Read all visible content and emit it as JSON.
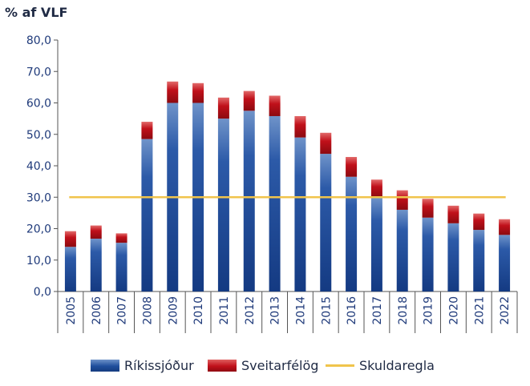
{
  "chart_data": {
    "type": "bar",
    "stacked": true,
    "unit_label": "% af VLF",
    "categories": [
      "2005",
      "2006",
      "2007",
      "2008",
      "2009",
      "2010",
      "2011",
      "2012",
      "2013",
      "2014",
      "2015",
      "2016",
      "2017",
      "2018",
      "2019",
      "2020",
      "2021",
      "2022"
    ],
    "series": [
      {
        "name": "Ríkissjóður",
        "color": "#1f4e9c",
        "values": [
          14.2,
          16.8,
          15.5,
          48.5,
          60.0,
          60.0,
          55.0,
          57.5,
          55.8,
          49.0,
          43.8,
          36.5,
          30.0,
          26.0,
          23.5,
          21.7,
          19.6,
          18.0
        ]
      },
      {
        "name": "Sveitarfélög",
        "color": "#c0101a",
        "values": [
          5.0,
          4.2,
          3.0,
          5.5,
          6.8,
          6.3,
          6.7,
          6.3,
          6.5,
          6.8,
          6.7,
          6.3,
          5.6,
          6.2,
          6.0,
          5.6,
          5.2,
          5.0
        ]
      }
    ],
    "reference_line": {
      "name": "Skuldaregla",
      "value": 30.0,
      "color": "#f0c44c"
    },
    "ylim": [
      0,
      80
    ],
    "yticks": [
      "0,0",
      "10,0",
      "20,0",
      "30,0",
      "40,0",
      "50,0",
      "60,0",
      "70,0",
      "80,0"
    ],
    "legend_position": "bottom",
    "grid": false
  }
}
